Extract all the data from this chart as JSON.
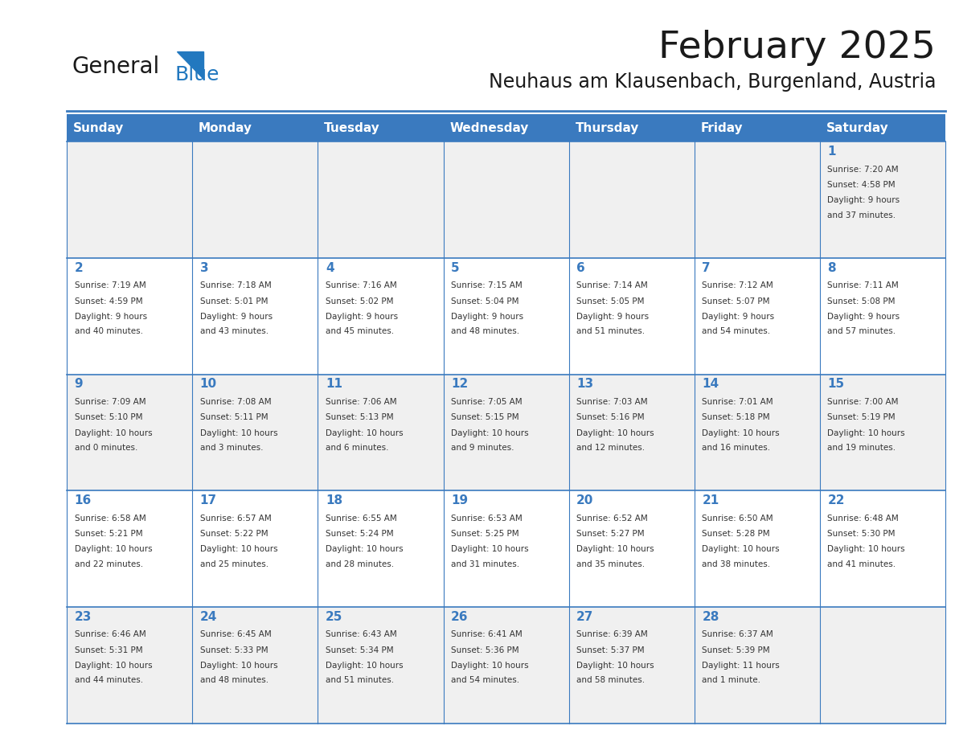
{
  "title": "February 2025",
  "subtitle": "Neuhaus am Klausenbach, Burgenland, Austria",
  "header_bg": "#3a7abf",
  "header_text": "#ffffff",
  "day_names": [
    "Sunday",
    "Monday",
    "Tuesday",
    "Wednesday",
    "Thursday",
    "Friday",
    "Saturday"
  ],
  "row1_bg": "#f0f0f0",
  "row2_bg": "#ffffff",
  "cell_border": "#3a7abf",
  "day_num_color": "#3a7abf",
  "info_color": "#333333",
  "logo_general_color": "#1a1a1a",
  "logo_blue_color": "#2278bf",
  "days": [
    {
      "day": 1,
      "col": 6,
      "row": 0,
      "sunrise": "7:20 AM",
      "sunset": "4:58 PM",
      "daylight": "9 hours and 37 minutes."
    },
    {
      "day": 2,
      "col": 0,
      "row": 1,
      "sunrise": "7:19 AM",
      "sunset": "4:59 PM",
      "daylight": "9 hours and 40 minutes."
    },
    {
      "day": 3,
      "col": 1,
      "row": 1,
      "sunrise": "7:18 AM",
      "sunset": "5:01 PM",
      "daylight": "9 hours and 43 minutes."
    },
    {
      "day": 4,
      "col": 2,
      "row": 1,
      "sunrise": "7:16 AM",
      "sunset": "5:02 PM",
      "daylight": "9 hours and 45 minutes."
    },
    {
      "day": 5,
      "col": 3,
      "row": 1,
      "sunrise": "7:15 AM",
      "sunset": "5:04 PM",
      "daylight": "9 hours and 48 minutes."
    },
    {
      "day": 6,
      "col": 4,
      "row": 1,
      "sunrise": "7:14 AM",
      "sunset": "5:05 PM",
      "daylight": "9 hours and 51 minutes."
    },
    {
      "day": 7,
      "col": 5,
      "row": 1,
      "sunrise": "7:12 AM",
      "sunset": "5:07 PM",
      "daylight": "9 hours and 54 minutes."
    },
    {
      "day": 8,
      "col": 6,
      "row": 1,
      "sunrise": "7:11 AM",
      "sunset": "5:08 PM",
      "daylight": "9 hours and 57 minutes."
    },
    {
      "day": 9,
      "col": 0,
      "row": 2,
      "sunrise": "7:09 AM",
      "sunset": "5:10 PM",
      "daylight": "10 hours and 0 minutes."
    },
    {
      "day": 10,
      "col": 1,
      "row": 2,
      "sunrise": "7:08 AM",
      "sunset": "5:11 PM",
      "daylight": "10 hours and 3 minutes."
    },
    {
      "day": 11,
      "col": 2,
      "row": 2,
      "sunrise": "7:06 AM",
      "sunset": "5:13 PM",
      "daylight": "10 hours and 6 minutes."
    },
    {
      "day": 12,
      "col": 3,
      "row": 2,
      "sunrise": "7:05 AM",
      "sunset": "5:15 PM",
      "daylight": "10 hours and 9 minutes."
    },
    {
      "day": 13,
      "col": 4,
      "row": 2,
      "sunrise": "7:03 AM",
      "sunset": "5:16 PM",
      "daylight": "10 hours and 12 minutes."
    },
    {
      "day": 14,
      "col": 5,
      "row": 2,
      "sunrise": "7:01 AM",
      "sunset": "5:18 PM",
      "daylight": "10 hours and 16 minutes."
    },
    {
      "day": 15,
      "col": 6,
      "row": 2,
      "sunrise": "7:00 AM",
      "sunset": "5:19 PM",
      "daylight": "10 hours and 19 minutes."
    },
    {
      "day": 16,
      "col": 0,
      "row": 3,
      "sunrise": "6:58 AM",
      "sunset": "5:21 PM",
      "daylight": "10 hours and 22 minutes."
    },
    {
      "day": 17,
      "col": 1,
      "row": 3,
      "sunrise": "6:57 AM",
      "sunset": "5:22 PM",
      "daylight": "10 hours and 25 minutes."
    },
    {
      "day": 18,
      "col": 2,
      "row": 3,
      "sunrise": "6:55 AM",
      "sunset": "5:24 PM",
      "daylight": "10 hours and 28 minutes."
    },
    {
      "day": 19,
      "col": 3,
      "row": 3,
      "sunrise": "6:53 AM",
      "sunset": "5:25 PM",
      "daylight": "10 hours and 31 minutes."
    },
    {
      "day": 20,
      "col": 4,
      "row": 3,
      "sunrise": "6:52 AM",
      "sunset": "5:27 PM",
      "daylight": "10 hours and 35 minutes."
    },
    {
      "day": 21,
      "col": 5,
      "row": 3,
      "sunrise": "6:50 AM",
      "sunset": "5:28 PM",
      "daylight": "10 hours and 38 minutes."
    },
    {
      "day": 22,
      "col": 6,
      "row": 3,
      "sunrise": "6:48 AM",
      "sunset": "5:30 PM",
      "daylight": "10 hours and 41 minutes."
    },
    {
      "day": 23,
      "col": 0,
      "row": 4,
      "sunrise": "6:46 AM",
      "sunset": "5:31 PM",
      "daylight": "10 hours and 44 minutes."
    },
    {
      "day": 24,
      "col": 1,
      "row": 4,
      "sunrise": "6:45 AM",
      "sunset": "5:33 PM",
      "daylight": "10 hours and 48 minutes."
    },
    {
      "day": 25,
      "col": 2,
      "row": 4,
      "sunrise": "6:43 AM",
      "sunset": "5:34 PM",
      "daylight": "10 hours and 51 minutes."
    },
    {
      "day": 26,
      "col": 3,
      "row": 4,
      "sunrise": "6:41 AM",
      "sunset": "5:36 PM",
      "daylight": "10 hours and 54 minutes."
    },
    {
      "day": 27,
      "col": 4,
      "row": 4,
      "sunrise": "6:39 AM",
      "sunset": "5:37 PM",
      "daylight": "10 hours and 58 minutes."
    },
    {
      "day": 28,
      "col": 5,
      "row": 4,
      "sunrise": "6:37 AM",
      "sunset": "5:39 PM",
      "daylight": "11 hours and 1 minute."
    }
  ]
}
